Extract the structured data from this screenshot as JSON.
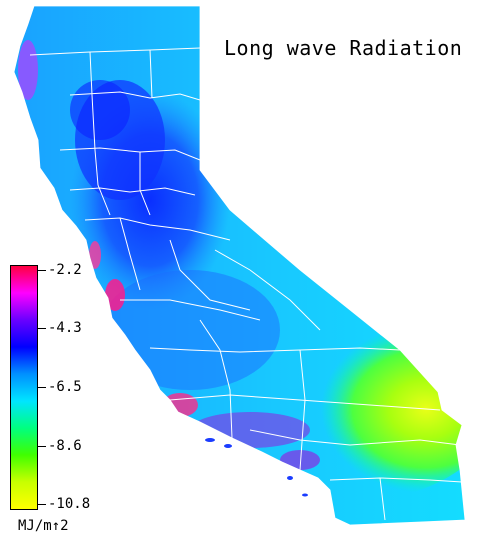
{
  "title": "Long wave Radiation",
  "legend": {
    "unit": "MJ/m↑2",
    "ticks": [
      "-2.2",
      "-4.3",
      "-6.5",
      "-8.6",
      "-10.8"
    ],
    "colors": [
      "#ff0040",
      "#ff00ff",
      "#6a00ff",
      "#0000ff",
      "#0090ff",
      "#00e5ff",
      "#00ff80",
      "#40ff00",
      "#c8ff00",
      "#ffff00"
    ]
  },
  "palette": {
    "background": "#ffffff",
    "county_lines": "#ffffff",
    "coast_hot": "#ff1a8c",
    "coast_purple": "#8a2be2",
    "valley_blue": "#0a3cff",
    "base_cyan": "#1ea7ff",
    "desert_green": "#5cff2a",
    "desert_yellow": "#e9ff18"
  }
}
